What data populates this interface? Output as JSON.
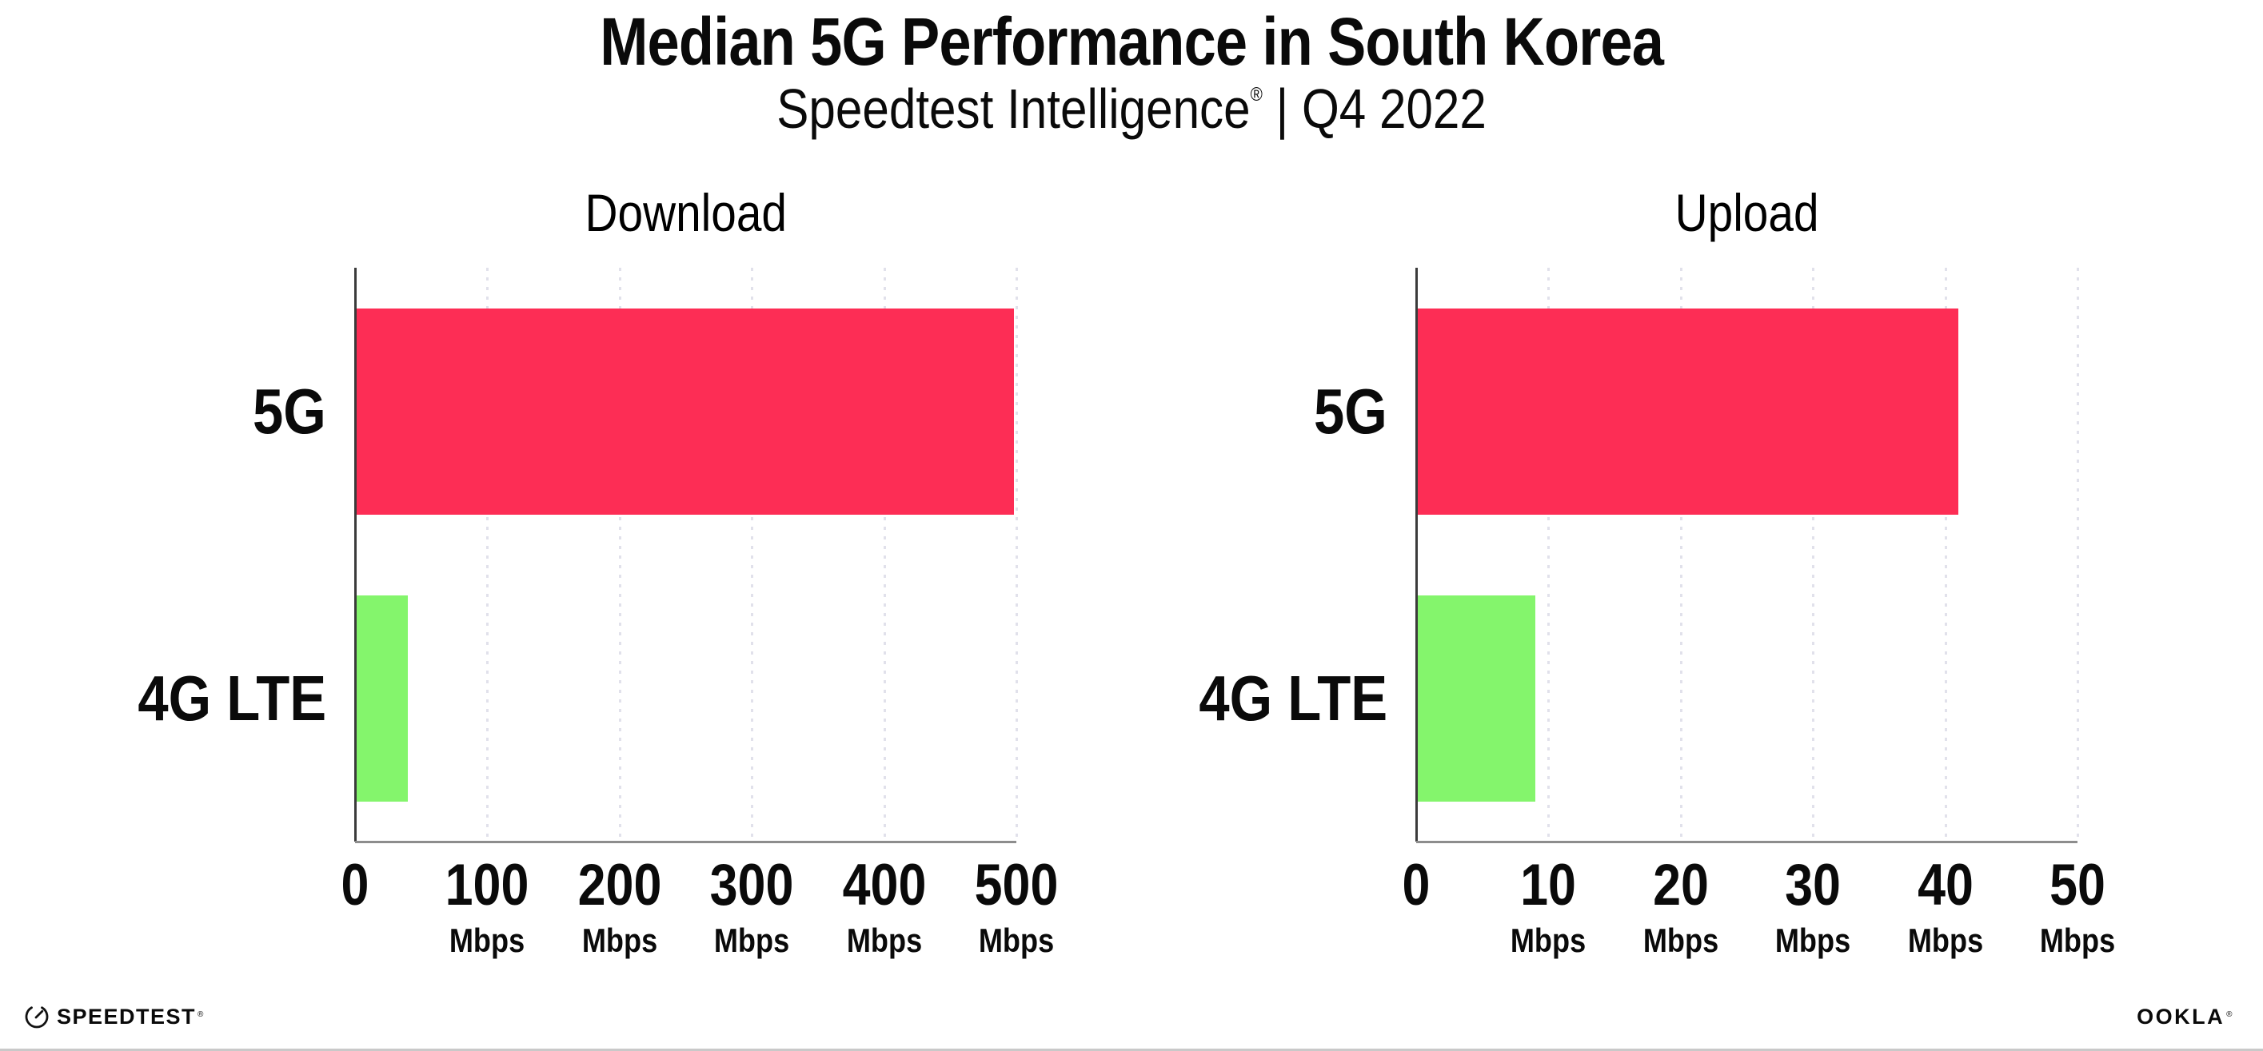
{
  "header": {
    "title": "Median 5G Performance in South Korea",
    "subtitle": {
      "brand": "Speedtest Intelligence",
      "reg": "®",
      "rest": " | Q4 2022"
    }
  },
  "chart_data": [
    {
      "type": "bar",
      "orientation": "horizontal",
      "title": "Download",
      "categories": [
        "5G",
        "4G LTE"
      ],
      "values": [
        498,
        40
      ],
      "unit": "Mbps",
      "xlim": [
        0,
        500
      ],
      "xticks": [
        0,
        100,
        200,
        300,
        400,
        500
      ],
      "bar_colors": [
        "#fd2d55",
        "#84f56c"
      ],
      "grid": "dotted-vertical",
      "legend": "none"
    },
    {
      "type": "bar",
      "orientation": "horizontal",
      "title": "Upload",
      "categories": [
        "5G",
        "4G LTE"
      ],
      "values": [
        41,
        9
      ],
      "unit": "Mbps",
      "xlim": [
        0,
        50
      ],
      "xticks": [
        0,
        10,
        20,
        30,
        40,
        50
      ],
      "bar_colors": [
        "#fd2d55",
        "#84f56c"
      ],
      "grid": "dotted-vertical",
      "legend": "none"
    }
  ],
  "footer": {
    "speedtest_label": "SPEEDTEST",
    "speedtest_reg": "®",
    "ookla_label": "OOKLA",
    "ookla_reg": "®"
  },
  "colors": {
    "bar_5g": "#fd2d55",
    "bar_4g_lte": "#84f56c",
    "gridline": "#e1e1eb",
    "y_axis_line": "#3b3b3b",
    "x_axis_line": "#8d8d8d",
    "text": "#0a0a0a"
  }
}
